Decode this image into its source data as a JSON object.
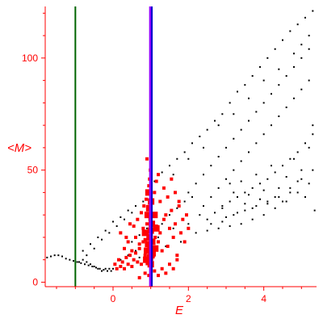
{
  "chart_data": {
    "type": "scatter",
    "title": "",
    "xlabel": "E",
    "ylabel": "<M>",
    "xlim": [
      -1.8,
      5.4
    ],
    "ylim": [
      -2,
      123
    ],
    "x_ticks": [
      0,
      2,
      4
    ],
    "y_ticks": [
      0,
      50,
      100
    ],
    "x_tick_labels": [
      "0",
      "2",
      "4"
    ],
    "y_tick_labels": [
      "0",
      "50",
      "100"
    ],
    "grid": false,
    "legend": "none",
    "vertical_lines": [
      {
        "x": -1.0,
        "color": "#006400"
      },
      {
        "x": 1.0,
        "color": "#9400ff"
      },
      {
        "x": 1.03,
        "color": "#0000cc"
      }
    ],
    "series": [
      {
        "color": "#000000",
        "marker": "dot",
        "points": [
          [
            -1.75,
            11
          ],
          [
            -1.65,
            11.5
          ],
          [
            -1.55,
            12
          ],
          [
            -1.45,
            12
          ],
          [
            -1.35,
            11.5
          ],
          [
            -1.25,
            10.5
          ],
          [
            -1.15,
            10
          ],
          [
            -1.05,
            9.5
          ],
          [
            -0.95,
            9
          ],
          [
            -0.85,
            8.5
          ],
          [
            -0.75,
            8
          ],
          [
            -0.65,
            7.5
          ],
          [
            -0.55,
            7
          ],
          [
            -0.45,
            6.5
          ],
          [
            -0.35,
            6
          ],
          [
            -0.25,
            5.5
          ],
          [
            -0.15,
            5
          ],
          [
            -0.05,
            5
          ],
          [
            -0.9,
            9
          ],
          [
            -0.8,
            10
          ],
          [
            -0.7,
            9
          ],
          [
            -0.6,
            8
          ],
          [
            -0.5,
            7
          ],
          [
            -0.4,
            6
          ],
          [
            -0.3,
            5
          ],
          [
            -0.2,
            6
          ],
          [
            -0.1,
            6
          ],
          [
            0,
            6
          ],
          [
            -0.8,
            14
          ],
          [
            -0.6,
            17
          ],
          [
            -0.4,
            20
          ],
          [
            -0.2,
            23
          ],
          [
            0.0,
            27
          ],
          [
            0.2,
            29
          ],
          [
            0.4,
            32
          ],
          [
            0.6,
            34
          ],
          [
            0.8,
            36
          ],
          [
            1.0,
            38
          ],
          [
            -0.7,
            12
          ],
          [
            -0.5,
            15
          ],
          [
            -0.3,
            19
          ],
          [
            -0.1,
            22
          ],
          [
            0.1,
            25
          ],
          [
            0.3,
            28
          ],
          [
            0.5,
            31
          ],
          [
            1.1,
            45
          ],
          [
            1.3,
            49
          ],
          [
            1.5,
            52
          ],
          [
            1.7,
            55
          ],
          [
            1.9,
            58
          ],
          [
            2.1,
            62
          ],
          [
            2.3,
            65
          ],
          [
            2.5,
            68
          ],
          [
            2.7,
            72
          ],
          [
            2.9,
            75
          ],
          [
            3.1,
            80
          ],
          [
            3.3,
            85
          ],
          [
            3.5,
            88
          ],
          [
            3.7,
            92
          ],
          [
            3.9,
            96
          ],
          [
            4.1,
            100
          ],
          [
            4.3,
            104
          ],
          [
            4.5,
            108
          ],
          [
            4.7,
            112
          ],
          [
            4.9,
            115
          ],
          [
            5.1,
            118
          ],
          [
            5.3,
            121
          ],
          [
            2.0,
            40
          ],
          [
            2.2,
            44
          ],
          [
            2.4,
            48
          ],
          [
            2.6,
            52
          ],
          [
            2.8,
            56
          ],
          [
            3.0,
            60
          ],
          [
            3.2,
            64
          ],
          [
            3.4,
            68
          ],
          [
            3.6,
            72
          ],
          [
            3.8,
            76
          ],
          [
            4.0,
            80
          ],
          [
            4.2,
            84
          ],
          [
            4.4,
            88
          ],
          [
            4.6,
            92
          ],
          [
            4.8,
            96
          ],
          [
            5.0,
            100
          ],
          [
            5.2,
            104
          ],
          [
            2.4,
            34
          ],
          [
            2.6,
            38
          ],
          [
            2.8,
            42
          ],
          [
            3.0,
            46
          ],
          [
            3.2,
            50
          ],
          [
            3.4,
            54
          ],
          [
            3.6,
            58
          ],
          [
            3.8,
            62
          ],
          [
            4.0,
            66
          ],
          [
            4.2,
            70
          ],
          [
            4.4,
            74
          ],
          [
            4.6,
            78
          ],
          [
            4.8,
            82
          ],
          [
            5.0,
            86
          ],
          [
            5.2,
            90
          ],
          [
            2.5,
            28
          ],
          [
            2.7,
            31
          ],
          [
            2.9,
            34
          ],
          [
            3.1,
            36
          ],
          [
            3.3,
            38
          ],
          [
            3.5,
            40
          ],
          [
            3.7,
            42
          ],
          [
            3.9,
            44
          ],
          [
            4.1,
            46
          ],
          [
            4.3,
            49
          ],
          [
            4.5,
            52
          ],
          [
            4.7,
            55
          ],
          [
            4.9,
            58
          ],
          [
            5.1,
            62
          ],
          [
            5.3,
            66
          ],
          [
            2.2,
            22
          ],
          [
            2.5,
            23
          ],
          [
            2.8,
            24
          ],
          [
            3.1,
            25
          ],
          [
            3.4,
            26
          ],
          [
            3.7,
            28
          ],
          [
            4.0,
            30
          ],
          [
            4.3,
            33
          ],
          [
            4.6,
            36
          ],
          [
            4.9,
            40
          ],
          [
            5.2,
            44
          ],
          [
            2.9,
            33
          ],
          [
            3.0,
            29
          ],
          [
            3.1,
            44
          ],
          [
            3.2,
            40
          ],
          [
            3.3,
            31
          ],
          [
            3.4,
            45
          ],
          [
            3.5,
            35
          ],
          [
            3.6,
            39
          ],
          [
            3.7,
            33
          ],
          [
            3.8,
            48
          ],
          [
            3.9,
            37
          ],
          [
            4.0,
            41
          ],
          [
            4.1,
            35
          ],
          [
            4.2,
            52
          ],
          [
            4.3,
            38
          ],
          [
            4.4,
            42
          ],
          [
            4.5,
            36
          ],
          [
            4.6,
            47
          ],
          [
            4.7,
            40
          ],
          [
            4.8,
            55
          ],
          [
            4.9,
            45
          ],
          [
            5.0,
            50
          ],
          [
            5.1,
            38
          ],
          [
            5.2,
            60
          ],
          [
            5.3,
            70
          ],
          [
            5.35,
            32
          ],
          [
            2.3,
            30
          ],
          [
            2.6,
            26
          ],
          [
            2.9,
            27
          ],
          [
            3.2,
            30
          ],
          [
            3.5,
            32
          ],
          [
            3.8,
            34
          ],
          [
            4.1,
            36
          ],
          [
            4.4,
            38
          ],
          [
            4.7,
            42
          ],
          [
            5.0,
            46
          ],
          [
            5.3,
            50
          ],
          [
            0.2,
            10
          ],
          [
            0.4,
            12
          ],
          [
            0.6,
            14
          ],
          [
            0.7,
            11
          ],
          [
            0.9,
            13
          ],
          [
            1.2,
            20
          ],
          [
            1.4,
            16
          ],
          [
            1.6,
            24
          ],
          [
            1.8,
            18
          ],
          [
            2.0,
            26
          ],
          [
            0.5,
            18
          ],
          [
            0.7,
            21
          ],
          [
            0.9,
            24
          ],
          [
            1.3,
            26
          ],
          [
            1.5,
            30
          ],
          [
            1.7,
            33
          ],
          [
            1.9,
            36
          ],
          [
            2.1,
            38
          ],
          [
            4.8,
            102
          ],
          [
            5.0,
            106
          ],
          [
            5.2,
            110
          ],
          [
            4.0,
            90
          ],
          [
            4.4,
            95
          ],
          [
            3.6,
            82
          ],
          [
            3.2,
            75
          ],
          [
            2.8,
            70
          ],
          [
            2.4,
            60
          ],
          [
            2.0,
            55
          ],
          [
            1.6,
            48
          ]
        ]
      },
      {
        "color": "#ff0000",
        "marker": "square",
        "points": [
          [
            0.05,
            8
          ],
          [
            0.1,
            6
          ],
          [
            0.15,
            10
          ],
          [
            0.2,
            7
          ],
          [
            0.25,
            9
          ],
          [
            0.3,
            6
          ],
          [
            0.35,
            11
          ],
          [
            0.4,
            8
          ],
          [
            0.45,
            12
          ],
          [
            0.5,
            7
          ],
          [
            0.55,
            10
          ],
          [
            0.6,
            13
          ],
          [
            0.65,
            9
          ],
          [
            0.7,
            15
          ],
          [
            0.75,
            8
          ],
          [
            0.8,
            18
          ],
          [
            0.85,
            12
          ],
          [
            0.9,
            22
          ],
          [
            0.92,
            10
          ],
          [
            0.95,
            16
          ],
          [
            0.98,
            28
          ],
          [
            0.3,
            15
          ],
          [
            0.4,
            18
          ],
          [
            0.5,
            14
          ],
          [
            0.6,
            20
          ],
          [
            0.7,
            17
          ],
          [
            0.8,
            24
          ],
          [
            0.85,
            19
          ],
          [
            0.9,
            26
          ],
          [
            0.93,
            30
          ],
          [
            0.96,
            23
          ],
          [
            0.55,
            25
          ],
          [
            0.65,
            28
          ],
          [
            0.75,
            31
          ],
          [
            0.82,
            34
          ],
          [
            0.88,
            37
          ],
          [
            0.92,
            40
          ],
          [
            0.95,
            43
          ],
          [
            0.97,
            46
          ],
          [
            0.99,
            50
          ],
          [
            0.9,
            55
          ],
          [
            1.08,
            12
          ],
          [
            1.1,
            15
          ],
          [
            1.12,
            20
          ],
          [
            1.15,
            25
          ],
          [
            1.2,
            18
          ],
          [
            1.25,
            22
          ],
          [
            1.3,
            14
          ],
          [
            1.35,
            28
          ],
          [
            1.4,
            30
          ],
          [
            1.45,
            16
          ],
          [
            1.5,
            24
          ],
          [
            1.55,
            32
          ],
          [
            1.6,
            20
          ],
          [
            1.65,
            26
          ],
          [
            1.7,
            12
          ],
          [
            1.75,
            34
          ],
          [
            1.8,
            22
          ],
          [
            1.85,
            28
          ],
          [
            1.9,
            18
          ],
          [
            1.95,
            30
          ],
          [
            2.0,
            24
          ],
          [
            1.1,
            40
          ],
          [
            1.15,
            45
          ],
          [
            1.2,
            48
          ],
          [
            1.25,
            36
          ],
          [
            1.35,
            42
          ],
          [
            1.45,
            38
          ],
          [
            1.55,
            46
          ],
          [
            1.65,
            40
          ],
          [
            1.75,
            36
          ],
          [
            0.7,
            2
          ],
          [
            0.85,
            4
          ],
          [
            0.95,
            3
          ],
          [
            1.1,
            5
          ],
          [
            1.2,
            3
          ],
          [
            1.3,
            6
          ],
          [
            1.4,
            4
          ],
          [
            1.5,
            8
          ],
          [
            1.6,
            6
          ],
          [
            1.7,
            10
          ],
          [
            0.2,
            22
          ],
          [
            0.35,
            20
          ],
          [
            0.45,
            26
          ]
        ]
      },
      {
        "color": "#ff0000",
        "marker": "square-large",
        "points": [
          [
            0.95,
            9
          ],
          [
            0.98,
            11
          ],
          [
            1.0,
            8
          ],
          [
            1.02,
            12
          ],
          [
            0.9,
            14
          ],
          [
            0.93,
            17
          ],
          [
            0.97,
            20
          ],
          [
            1.0,
            23
          ],
          [
            1.03,
            26
          ],
          [
            0.92,
            30
          ],
          [
            0.96,
            33
          ],
          [
            1.01,
            36
          ],
          [
            0.94,
            40
          ],
          [
            1.04,
            18
          ],
          [
            1.05,
            13
          ],
          [
            0.88,
            10
          ],
          [
            0.85,
            22
          ],
          [
            1.12,
            15
          ],
          [
            1.15,
            24
          ],
          [
            1.1,
            30
          ]
        ]
      }
    ]
  }
}
